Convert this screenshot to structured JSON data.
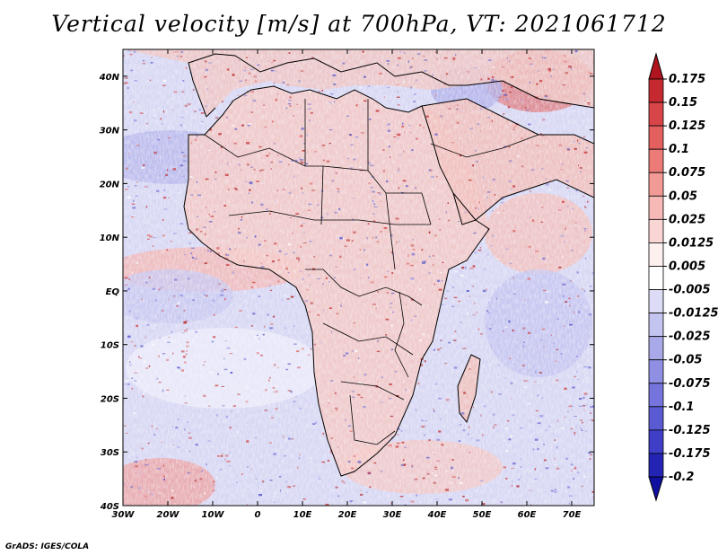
{
  "title": "Vertical velocity [m/s] at 700hPa, VT: 2021061712",
  "footer": "GrADS: IGES/COLA",
  "map": {
    "lon_labels": [
      "30W",
      "20W",
      "10W",
      "0",
      "10E",
      "20E",
      "30E",
      "40E",
      "50E",
      "60E",
      "70E"
    ],
    "lat_labels": [
      "40N",
      "30N",
      "20N",
      "10N",
      "EQ",
      "10S",
      "20S",
      "30S",
      "40S"
    ],
    "lon_range": [
      -30,
      75
    ],
    "lat_range": [
      -40,
      45
    ],
    "variable": "vertical velocity at 700 hPa"
  },
  "colorbar": {
    "labels": [
      "0.175",
      "0.15",
      "0.125",
      "0.1",
      "0.075",
      "0.05",
      "0.025",
      "0.0125",
      "0.005",
      "-0.005",
      "-0.0125",
      "-0.025",
      "-0.05",
      "-0.075",
      "-0.1",
      "-0.125",
      "-0.175",
      "-0.2"
    ],
    "colors": [
      "#b0141e",
      "#c62a30",
      "#d84548",
      "#e4605f",
      "#ec7b78",
      "#f29a96",
      "#f6b9b5",
      "#f9d6d3",
      "#fdf0ef",
      "#ffffff",
      "#dcdcf6",
      "#c4c4f0",
      "#a9a9ea",
      "#8f8fe4",
      "#7474dc",
      "#5a5ad2",
      "#3e3ec6",
      "#2424b4",
      "#1010a0"
    ],
    "colors_note": "ordered top (max) to bottom (min); triangle ends use first/last"
  }
}
